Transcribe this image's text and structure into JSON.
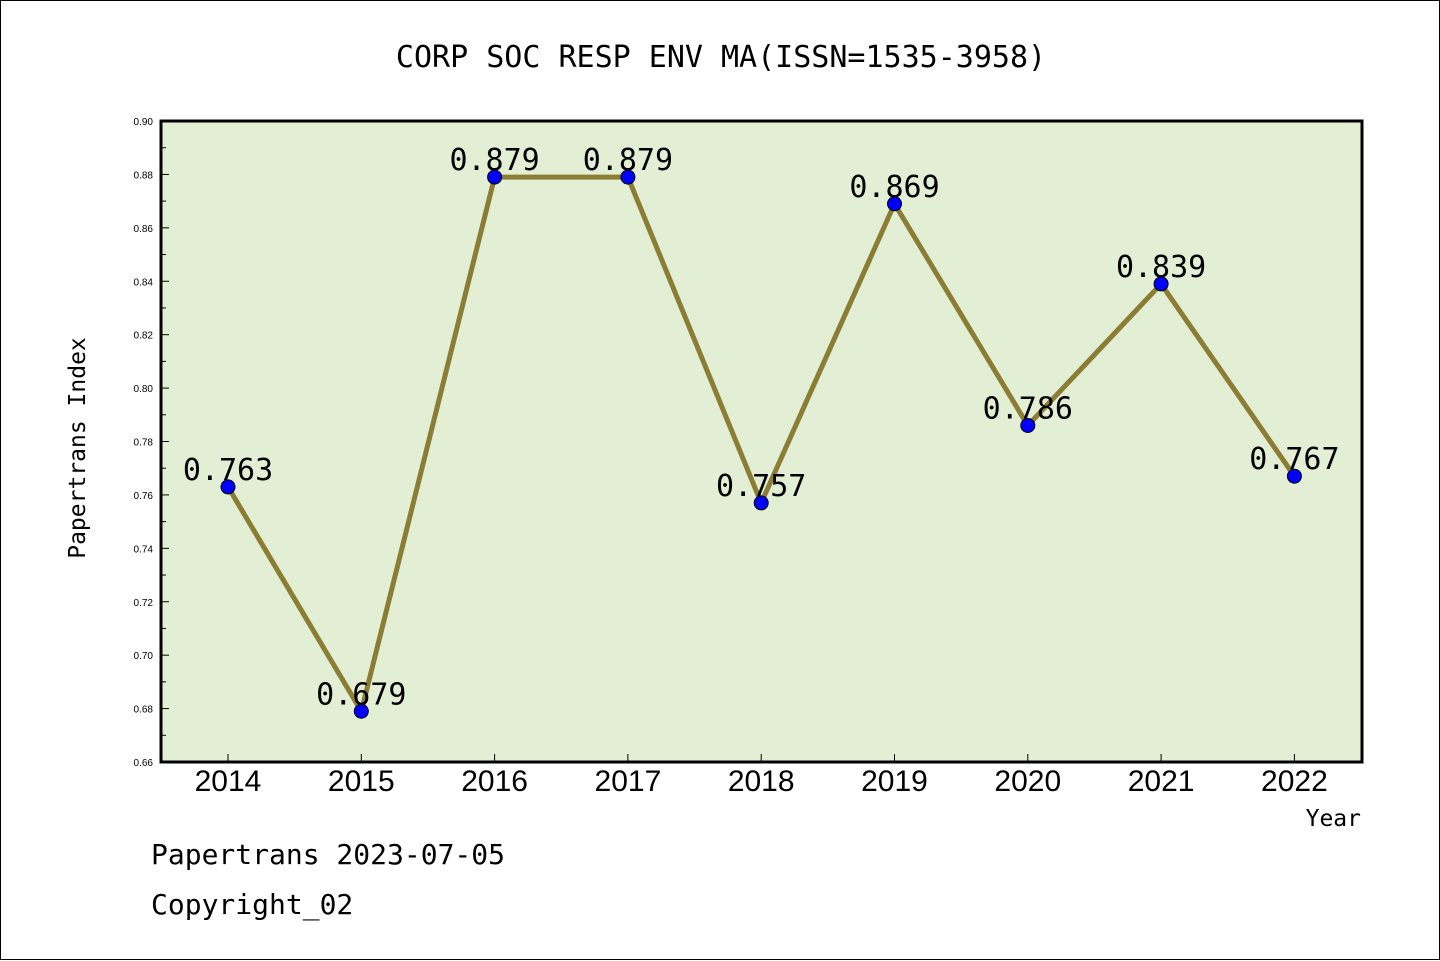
{
  "chart_data": {
    "type": "line",
    "title": "CORP SOC RESP ENV MA(ISSN=1535-3958)",
    "xlabel": "Year",
    "ylabel": "Papertrans Index",
    "categories": [
      "2014",
      "2015",
      "2016",
      "2017",
      "2018",
      "2019",
      "2020",
      "2021",
      "2022"
    ],
    "series": [
      {
        "values": [
          0.763,
          0.679,
          0.879,
          0.879,
          0.757,
          0.869,
          0.786,
          0.839,
          0.767
        ],
        "data_labels": [
          "0.763",
          "0.679",
          "0.879",
          "0.879",
          "0.757",
          "0.869",
          "0.786",
          "0.839",
          "0.767"
        ]
      }
    ],
    "ylim": [
      0.66,
      0.9
    ],
    "yticks": [
      "0.66",
      "0.68",
      "0.70",
      "0.72",
      "0.74",
      "0.76",
      "0.78",
      "0.80",
      "0.82",
      "0.84",
      "0.86",
      "0.88",
      "0.90"
    ],
    "grid": false,
    "legend": "none",
    "colors": {
      "plot_background": "#e2efd4",
      "line": "#8b7d33",
      "marker": "#0000ff"
    }
  },
  "footer": {
    "line1": "Papertrans 2023-07-05",
    "line2": "Copyright_02"
  }
}
